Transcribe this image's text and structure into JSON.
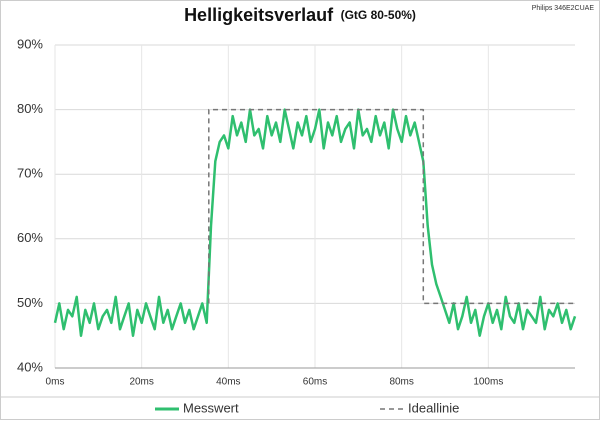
{
  "chart_data": {
    "type": "line",
    "title": "Helligkeitsverlauf",
    "subtitle": "(GtG 80-50%)",
    "annotation": "Philips 346E2CUAE",
    "x": [
      0,
      1,
      2,
      3,
      4,
      5,
      6,
      7,
      8,
      9,
      10,
      11,
      12,
      13,
      14,
      15,
      16,
      17,
      18,
      19,
      20,
      21,
      22,
      23,
      24,
      25,
      26,
      27,
      28,
      29,
      30,
      31,
      32,
      33,
      34,
      35,
      36,
      37,
      38,
      39,
      40,
      41,
      42,
      43,
      44,
      45,
      46,
      47,
      48,
      49,
      50,
      51,
      52,
      53,
      54,
      55,
      56,
      57,
      58,
      59,
      60,
      61,
      62,
      63,
      64,
      65,
      66,
      67,
      68,
      69,
      70,
      71,
      72,
      73,
      74,
      75,
      76,
      77,
      78,
      79,
      80,
      81,
      82,
      83,
      84,
      85,
      86,
      87,
      88,
      89,
      90,
      91,
      92,
      93,
      94,
      95,
      96,
      97,
      98,
      99,
      100,
      101,
      102,
      103,
      104,
      105,
      106,
      107,
      108,
      109,
      110,
      111,
      112,
      113,
      114,
      115,
      116,
      117,
      118,
      119,
      120
    ],
    "series": [
      {
        "name": "Messwert",
        "color": "#2fbf6f",
        "style": "solid",
        "values": [
          47,
          50,
          46,
          49,
          48,
          51,
          45,
          49,
          47,
          50,
          46,
          48,
          49,
          47,
          51,
          46,
          48,
          50,
          45,
          49,
          47,
          50,
          48,
          46,
          51,
          47,
          49,
          46,
          48,
          50,
          47,
          49,
          46,
          48,
          50,
          47,
          62,
          72,
          75,
          76,
          74,
          79,
          76,
          78,
          75,
          80,
          76,
          77,
          74,
          79,
          76,
          78,
          75,
          80,
          77,
          74,
          78,
          76,
          79,
          75,
          77,
          80,
          74,
          78,
          76,
          79,
          75,
          77,
          78,
          74,
          80,
          76,
          77,
          75,
          79,
          76,
          78,
          74,
          80,
          77,
          75,
          79,
          76,
          78,
          75,
          72,
          62,
          56,
          53,
          51,
          49,
          47,
          50,
          46,
          48,
          51,
          47,
          49,
          45,
          48,
          50,
          47,
          49,
          46,
          51,
          48,
          47,
          50,
          46,
          49,
          48,
          47,
          51,
          46,
          49,
          48,
          50,
          47,
          49,
          46,
          48
        ]
      },
      {
        "name": "Ideallinie",
        "color": "#777777",
        "style": "dashed",
        "x": [
          35.5,
          35.5,
          85,
          85,
          120
        ],
        "values": [
          50,
          80,
          80,
          50,
          50
        ]
      }
    ],
    "xlim": [
      0,
      120
    ],
    "xticks": [
      {
        "value": 0,
        "label": "0ms"
      },
      {
        "value": 20,
        "label": "20ms"
      },
      {
        "value": 40,
        "label": "40ms"
      },
      {
        "value": 60,
        "label": "60ms"
      },
      {
        "value": 80,
        "label": "80ms"
      },
      {
        "value": 100,
        "label": "100ms"
      }
    ],
    "ylim": [
      40,
      90
    ],
    "yticks": [
      {
        "value": 40,
        "label": "40%"
      },
      {
        "value": 50,
        "label": "50%"
      },
      {
        "value": 60,
        "label": "60%"
      },
      {
        "value": 70,
        "label": "70%"
      },
      {
        "value": 80,
        "label": "80%"
      },
      {
        "value": 90,
        "label": "90%"
      }
    ],
    "grid": true
  }
}
